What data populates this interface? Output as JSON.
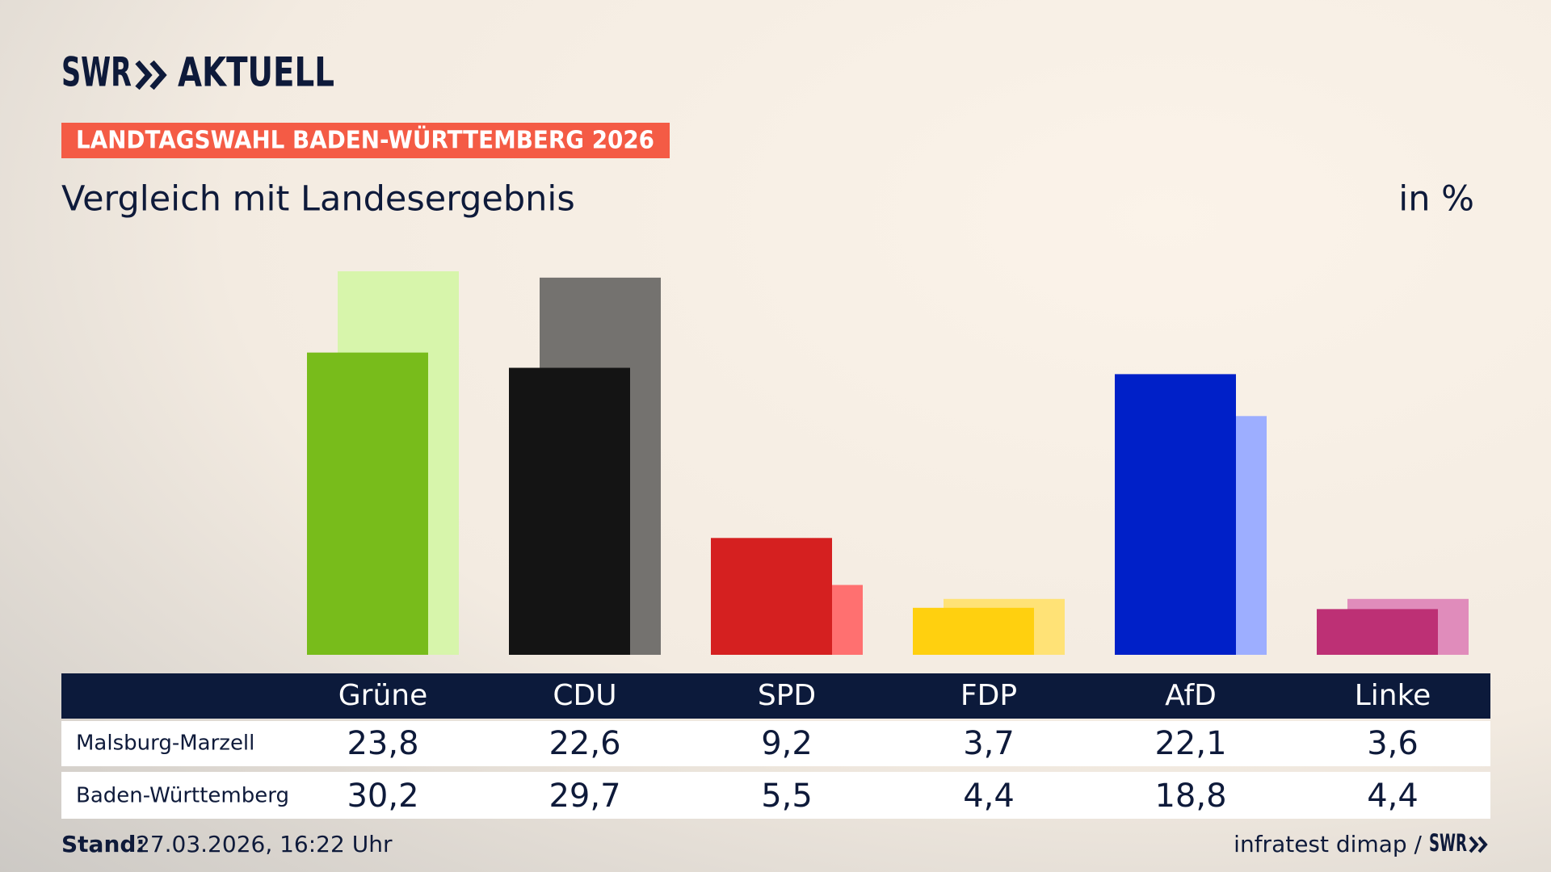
{
  "brand": "SWR",
  "brand_sub": "AKTUELL",
  "badge": "LANDTAGSWAHL BADEN-WÜRTTEMBERG 2026",
  "chart_data": {
    "type": "bar",
    "subtitle": "Vergleich mit Landesergebnis",
    "unit": "in %",
    "categories": [
      "Grüne",
      "CDU",
      "SPD",
      "FDP",
      "AfD",
      "Linke"
    ],
    "series": [
      {
        "name": "Malsburg-Marzell",
        "colors": [
          "#78bc1b",
          "#141414",
          "#d52020",
          "#ffd00f",
          "#0020c8",
          "#bd3075"
        ],
        "values": [
          23.8,
          22.6,
          9.2,
          3.7,
          22.1,
          3.6
        ],
        "value_labels": [
          "23,8",
          "22,6",
          "9,2",
          "3,7",
          "22,1",
          "3,6"
        ]
      },
      {
        "name": "Baden-Württemberg",
        "colors": [
          "#d7f5ab",
          "#74726f",
          "#ff7070",
          "#ffe276",
          "#9daeff",
          "#e08cbb"
        ],
        "values": [
          30.2,
          29.7,
          5.5,
          4.4,
          18.8,
          4.4
        ],
        "value_labels": [
          "30,2",
          "29,7",
          "5,5",
          "4,4",
          "18,8",
          "4,4"
        ]
      }
    ]
  },
  "footer": {
    "stand_label": "Stand:",
    "stand": "27.03.2026, 16:22 Uhr",
    "source": "infratest dimap /"
  }
}
